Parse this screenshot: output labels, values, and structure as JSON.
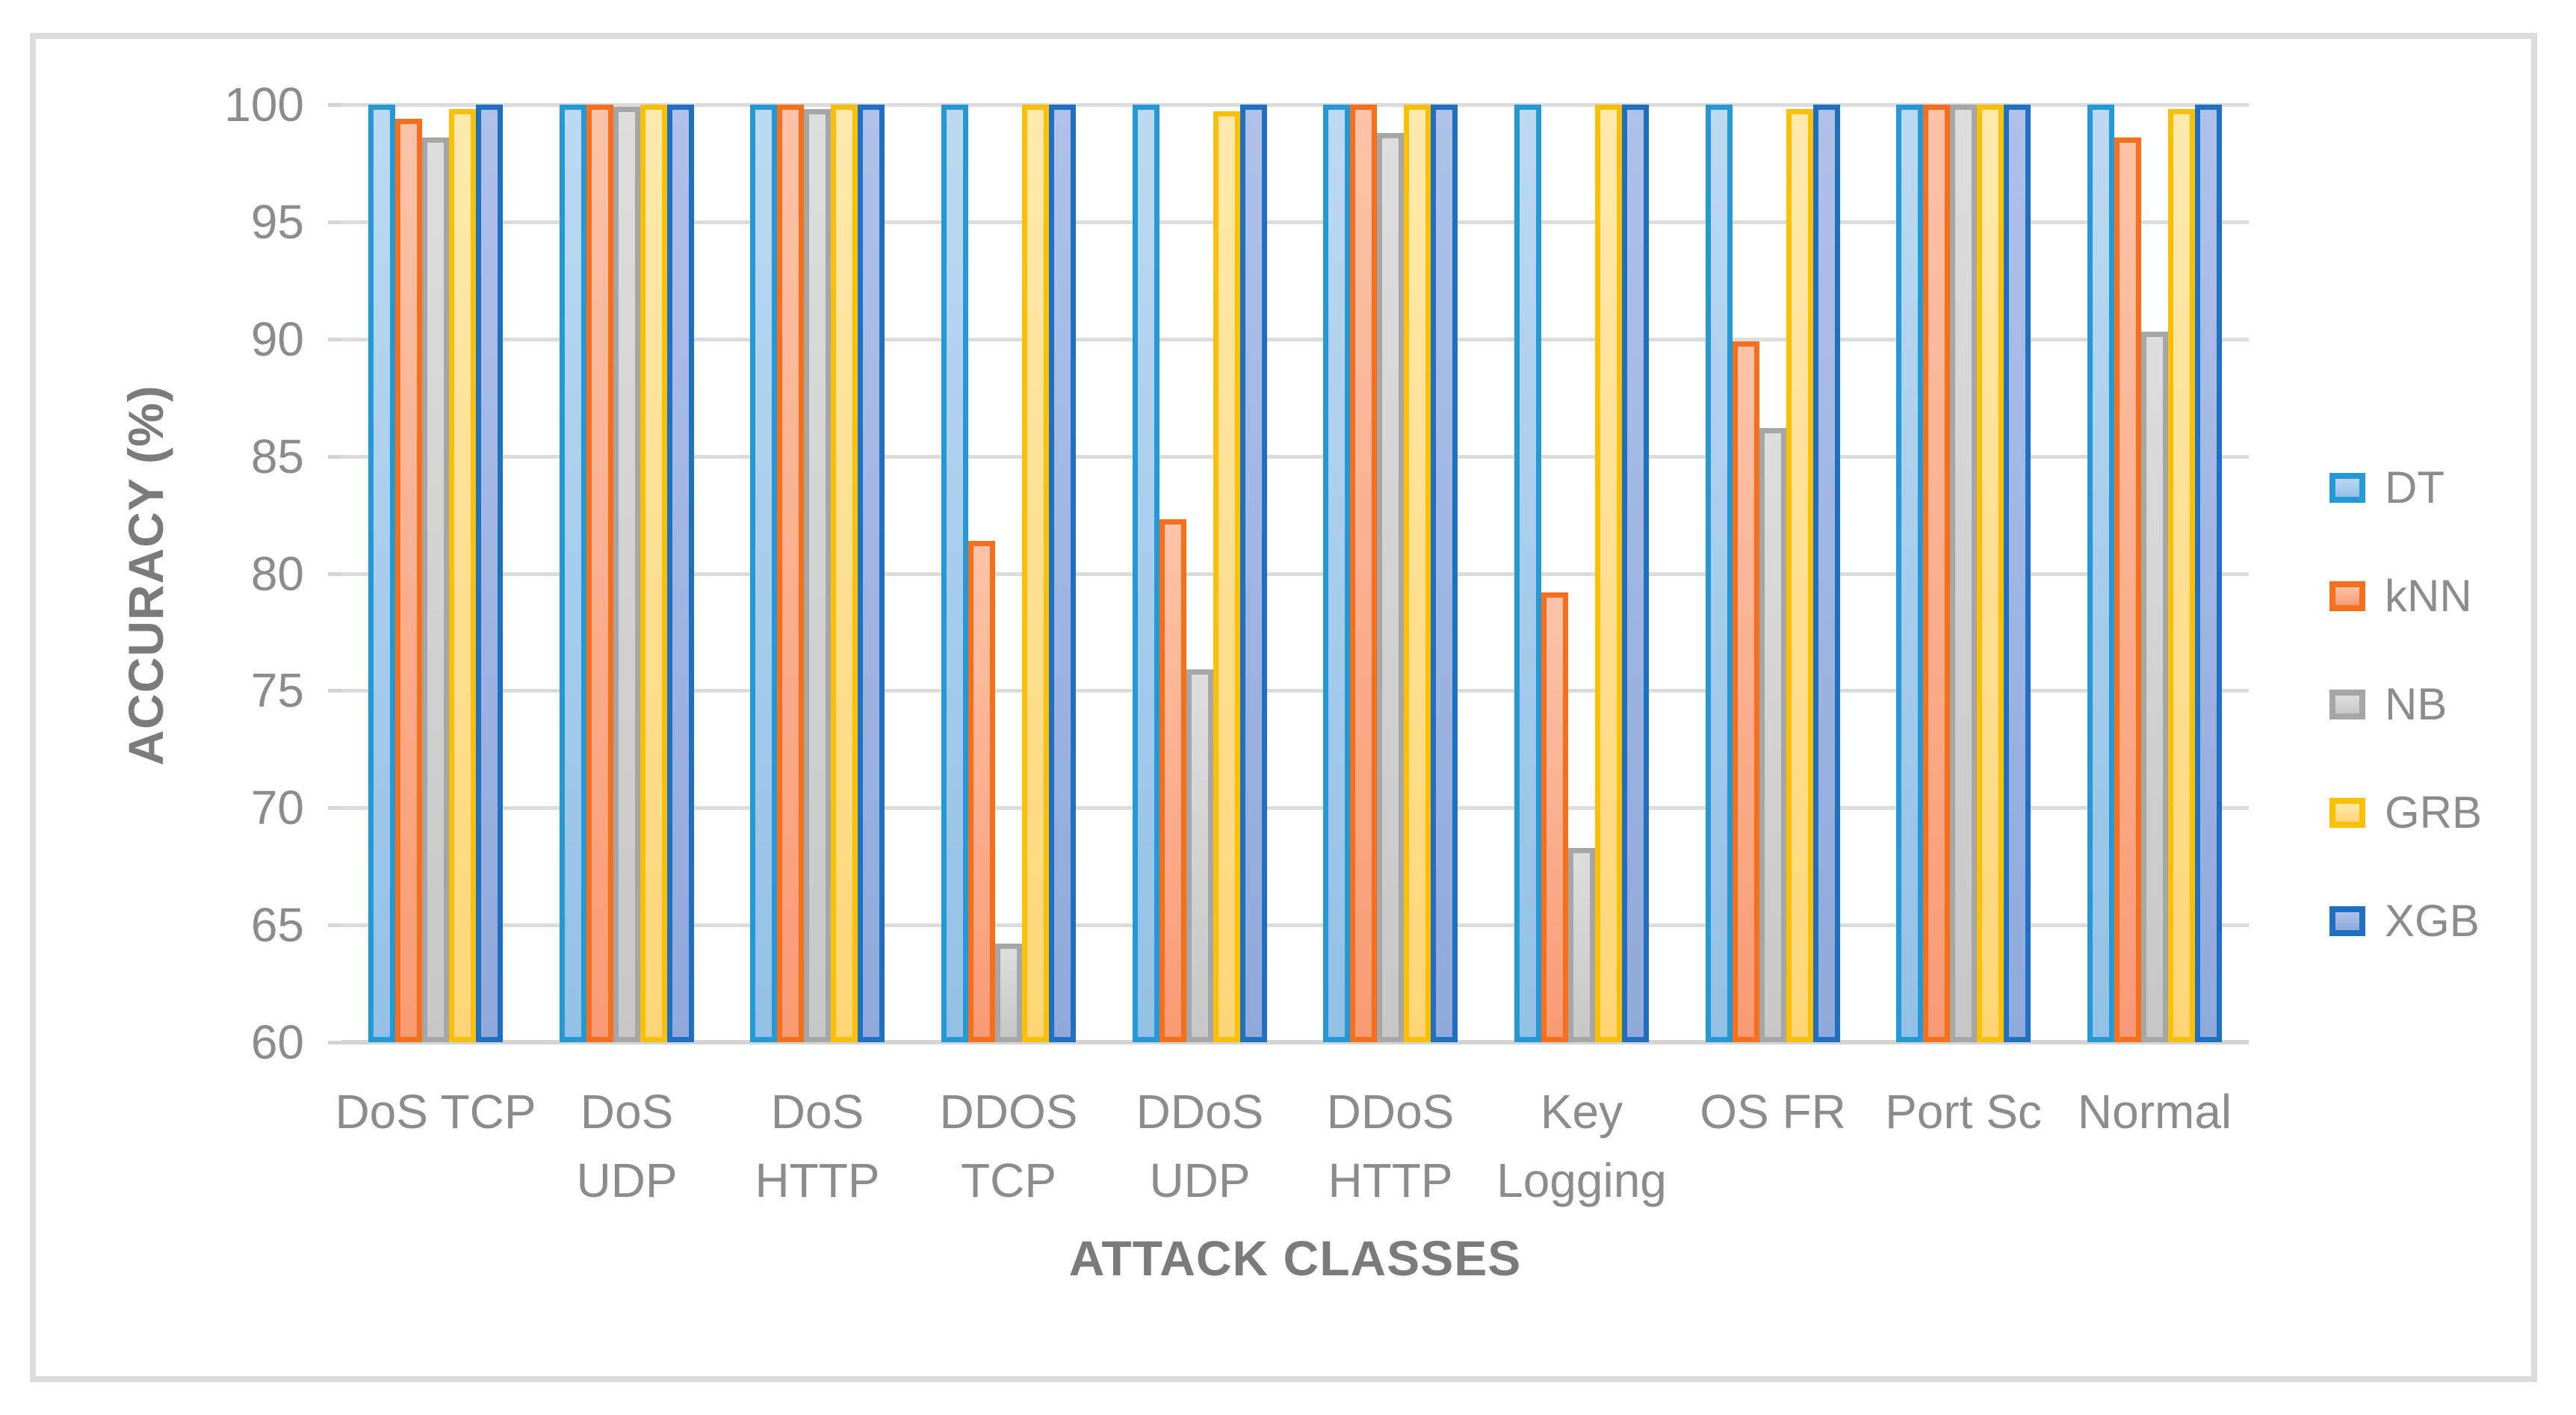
{
  "figure": {
    "y_axis_title": "ACCURACY (%)",
    "x_axis_title": "ATTACK CLASSES"
  },
  "colors": {
    "gridline": "#DCDCDC",
    "axis_line": "#D4D4D4",
    "label_text": "#8C8C8C",
    "title_text": "#7B7B7B",
    "figure_border": "#DBDBDB"
  },
  "chart_data": {
    "type": "bar",
    "title": "",
    "xlabel": "ATTACK CLASSES",
    "ylabel": "ACCURACY (%)",
    "ylim": [
      60,
      100
    ],
    "yticks": [
      60,
      65,
      70,
      75,
      80,
      85,
      90,
      95,
      100
    ],
    "grid": "horizontal",
    "legend_position": "right",
    "categories": [
      "DoS TCP",
      "DoS UDP",
      "DoS HTTP",
      "DDOS TCP",
      "DDoS UDP",
      "DDoS HTTP",
      "Key Logging",
      "OS FR",
      "Port Sc",
      "Normal"
    ],
    "category_label_lines": [
      [
        "DoS TCP"
      ],
      [
        "DoS",
        "UDP"
      ],
      [
        "DoS",
        "HTTP"
      ],
      [
        "DDOS",
        "TCP"
      ],
      [
        "DDoS",
        "UDP"
      ],
      [
        "DDoS",
        "HTTP"
      ],
      [
        "Key",
        "Logging"
      ],
      [
        "OS FR"
      ],
      [
        "Port Sc"
      ],
      [
        "Normal"
      ]
    ],
    "series": [
      {
        "name": "DT",
        "border_color": "#2499D6",
        "fill_top": "#BCD9F1",
        "fill_bottom": "#93C0E6",
        "values": [
          100,
          100,
          100,
          100,
          100,
          100,
          100,
          100,
          100,
          100
        ]
      },
      {
        "name": "kNN",
        "border_color": "#F56F1D",
        "fill_top": "#FCC3A8",
        "fill_bottom": "#F99B74",
        "values": [
          99.4,
          100,
          100,
          81.4,
          82.3,
          100,
          79.2,
          89.9,
          100,
          98.6
        ]
      },
      {
        "name": "NB",
        "border_color": "#A6A6A6",
        "fill_top": "#DDDDDD",
        "fill_bottom": "#C7C7C7",
        "values": [
          98.6,
          99.9,
          99.8,
          64.2,
          75.9,
          98.8,
          68.3,
          86.2,
          100,
          90.3
        ]
      },
      {
        "name": "GRB",
        "border_color": "#FEC006",
        "fill_top": "#FFE9AC",
        "fill_bottom": "#FED677",
        "values": [
          99.8,
          100,
          100,
          100,
          99.7,
          100,
          100,
          99.8,
          100,
          99.8
        ]
      },
      {
        "name": "XGB",
        "border_color": "#1F70C1",
        "fill_top": "#AFC1E9",
        "fill_bottom": "#8FA9DB",
        "values": [
          100,
          100,
          100,
          100,
          100,
          100,
          100,
          100,
          100,
          100
        ]
      }
    ]
  }
}
